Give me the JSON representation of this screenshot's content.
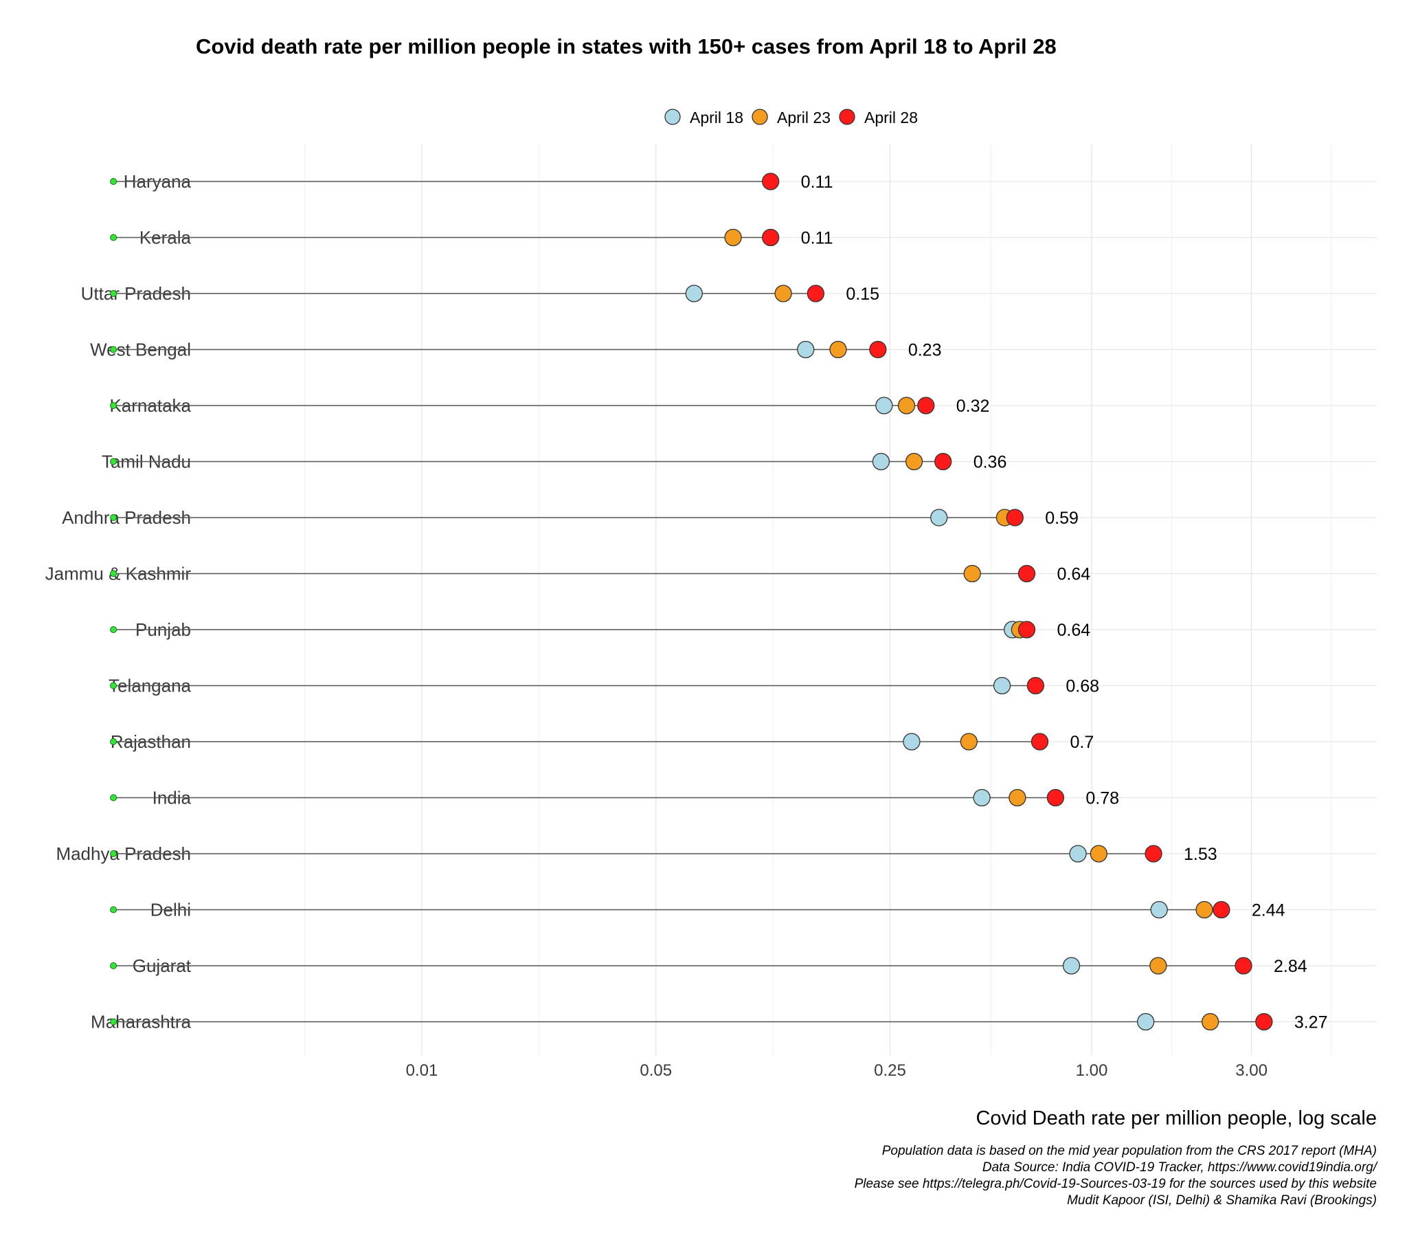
{
  "chart_data": {
    "type": "scatter",
    "title": "Covid death rate per million people in states with 150+ cases from April 18 to April 28",
    "xlabel": "Covid Death rate per million people, log scale",
    "ylabel": "",
    "x_scale": "log",
    "xlim": [
      0.0008,
      6.0
    ],
    "x_ticks": [
      0.01,
      0.05,
      0.25,
      1.0,
      3.0
    ],
    "x_tick_labels": [
      "0.01",
      "0.05",
      "0.25",
      "1.00",
      "3.00"
    ],
    "segment_start": 0.0012,
    "legend_position": "top",
    "grid": true,
    "colors": {
      "April 18": "#add8e6",
      "April 23": "#f39c1f",
      "April 28": "#ff1a1a",
      "start_marker": "#33e633",
      "segment": "#555555",
      "grid": "#e6e6e6"
    },
    "series": [
      {
        "name": "April 18",
        "values": [
          null,
          null,
          0.065,
          0.14,
          0.24,
          0.235,
          0.35,
          null,
          0.58,
          0.54,
          0.29,
          0.47,
          0.91,
          1.59,
          0.87,
          1.45
        ]
      },
      {
        "name": "April 23",
        "values": [
          null,
          0.085,
          0.12,
          0.175,
          0.28,
          0.295,
          0.55,
          0.44,
          0.61,
          null,
          0.43,
          0.6,
          1.05,
          2.17,
          1.58,
          2.26
        ]
      },
      {
        "name": "April 28",
        "values": [
          0.11,
          0.11,
          0.15,
          0.23,
          0.32,
          0.36,
          0.59,
          0.64,
          0.64,
          0.68,
          0.7,
          0.78,
          1.53,
          2.44,
          2.84,
          3.27
        ]
      }
    ],
    "categories": [
      "Haryana",
      "Kerala",
      "Uttar Pradesh",
      "West Bengal",
      "Karnataka",
      "Tamil Nadu",
      "Andhra Pradesh",
      "Jammu & Kashmir",
      "Punjab",
      "Telangana",
      "Rajasthan",
      "India",
      "Madhya Pradesh",
      "Delhi",
      "Gujarat",
      "Maharashtra"
    ],
    "value_labels": [
      "0.11",
      "0.11",
      "0.15",
      "0.23",
      "0.32",
      "0.36",
      "0.59",
      "0.64",
      "0.64",
      "0.68",
      "0.7",
      "0.78",
      "1.53",
      "2.44",
      "2.84",
      "3.27"
    ],
    "caption": [
      "Population data is based on the mid year population from the CRS 2017 report (MHA)",
      "Data Source: India COVID-19 Tracker, https://www.covid19india.org/",
      "Please see https://telegra.ph/Covid-19-Sources-03-19 for the sources used by this website",
      "Mudit Kapoor (ISI, Delhi) & Shamika Ravi (Brookings)"
    ]
  }
}
